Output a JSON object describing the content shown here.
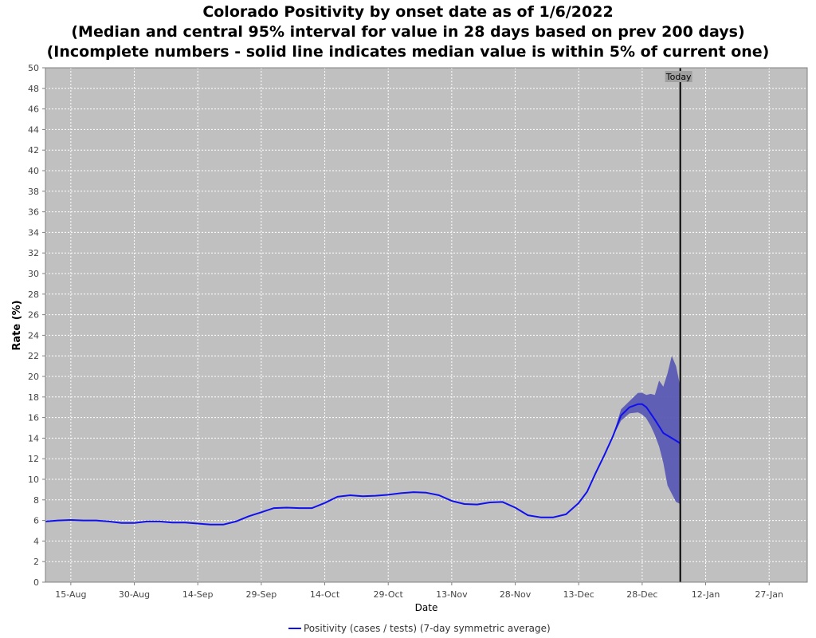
{
  "chart_data": {
    "type": "line",
    "title_lines": [
      "Colorado Positivity by onset date as of 1/6/2022",
      "(Median and central 95% interval for value in 28 days based on prev 200 days)",
      "(Incomplete numbers - solid line indicates median value is within 5% of current one)"
    ],
    "xlabel": "Date",
    "ylabel": "Rate (%)",
    "ylim": [
      0,
      50
    ],
    "yticks": [
      0,
      2,
      4,
      6,
      8,
      10,
      12,
      14,
      16,
      18,
      20,
      22,
      24,
      26,
      28,
      30,
      32,
      34,
      36,
      38,
      40,
      42,
      44,
      46,
      48,
      50
    ],
    "x_range": [
      "2021-08-09",
      "2022-02-05"
    ],
    "xticks": [
      {
        "date": "2021-08-15",
        "label": "15-Aug"
      },
      {
        "date": "2021-08-30",
        "label": "30-Aug"
      },
      {
        "date": "2021-09-14",
        "label": "14-Sep"
      },
      {
        "date": "2021-09-29",
        "label": "29-Sep"
      },
      {
        "date": "2021-10-14",
        "label": "14-Oct"
      },
      {
        "date": "2021-10-29",
        "label": "29-Oct"
      },
      {
        "date": "2021-11-13",
        "label": "13-Nov"
      },
      {
        "date": "2021-11-28",
        "label": "28-Nov"
      },
      {
        "date": "2021-12-13",
        "label": "13-Dec"
      },
      {
        "date": "2021-12-28",
        "label": "28-Dec"
      },
      {
        "date": "2022-01-12",
        "label": "12-Jan"
      },
      {
        "date": "2022-01-27",
        "label": "27-Jan"
      }
    ],
    "grid": true,
    "background_color": "#c0c0c0",
    "line_color": "#1010ee",
    "band_color": "#5a5ab4",
    "today_marker": {
      "date": "2022-01-06",
      "label": "Today",
      "color": "#000000"
    },
    "series": [
      {
        "name": "Positivity (cases / tests) (7-day symmetric average)",
        "x": [
          "2021-08-09",
          "2021-08-12",
          "2021-08-15",
          "2021-08-18",
          "2021-08-21",
          "2021-08-24",
          "2021-08-27",
          "2021-08-30",
          "2021-09-02",
          "2021-09-05",
          "2021-09-08",
          "2021-09-11",
          "2021-09-14",
          "2021-09-17",
          "2021-09-20",
          "2021-09-23",
          "2021-09-26",
          "2021-09-29",
          "2021-10-02",
          "2021-10-05",
          "2021-10-08",
          "2021-10-11",
          "2021-10-14",
          "2021-10-17",
          "2021-10-20",
          "2021-10-23",
          "2021-10-26",
          "2021-10-29",
          "2021-11-01",
          "2021-11-04",
          "2021-11-07",
          "2021-11-10",
          "2021-11-13",
          "2021-11-16",
          "2021-11-19",
          "2021-11-22",
          "2021-11-25",
          "2021-11-28",
          "2021-12-01",
          "2021-12-04",
          "2021-12-07",
          "2021-12-10",
          "2021-12-13",
          "2021-12-15",
          "2021-12-17",
          "2021-12-19",
          "2021-12-21",
          "2021-12-23",
          "2021-12-25",
          "2021-12-27",
          "2021-12-28",
          "2021-12-29",
          "2021-12-31",
          "2022-01-02",
          "2022-01-04",
          "2022-01-06"
        ],
        "y": [
          5.9,
          6.0,
          6.05,
          6.0,
          6.0,
          5.9,
          5.75,
          5.75,
          5.9,
          5.9,
          5.8,
          5.8,
          5.7,
          5.6,
          5.6,
          5.9,
          6.4,
          6.8,
          7.2,
          7.25,
          7.2,
          7.2,
          7.7,
          8.3,
          8.45,
          8.35,
          8.4,
          8.5,
          8.65,
          8.75,
          8.7,
          8.45,
          7.9,
          7.6,
          7.55,
          7.75,
          7.8,
          7.25,
          6.5,
          6.3,
          6.3,
          6.6,
          7.7,
          8.8,
          10.6,
          12.3,
          14.1,
          16.2,
          17.0,
          17.3,
          17.3,
          17.0,
          15.8,
          14.5,
          14.0,
          13.5
        ]
      }
    ],
    "interval_band": {
      "x": [
        "2021-12-21",
        "2021-12-23",
        "2021-12-25",
        "2021-12-27",
        "2021-12-28",
        "2021-12-29",
        "2021-12-30",
        "2021-12-31",
        "2022-01-01",
        "2022-01-02",
        "2022-01-03",
        "2022-01-04",
        "2022-01-05",
        "2022-01-06"
      ],
      "upper": [
        14.1,
        16.8,
        17.6,
        18.4,
        18.4,
        18.2,
        18.3,
        18.2,
        19.6,
        19.0,
        20.3,
        22.0,
        21.0,
        19.0
      ],
      "lower": [
        14.1,
        15.7,
        16.4,
        16.5,
        16.3,
        15.9,
        15.2,
        14.3,
        13.2,
        11.6,
        9.4,
        8.6,
        7.8,
        7.6
      ]
    },
    "legend_position": "bottom-center"
  }
}
